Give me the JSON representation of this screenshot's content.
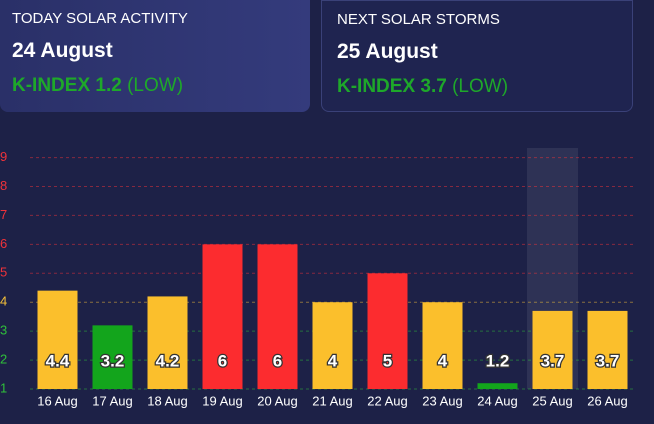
{
  "cards": [
    {
      "label": "TODAY SOLAR ACTIVITY",
      "date": "24 August",
      "k_index": "K-INDEX 1.2",
      "level": "(LOW)"
    },
    {
      "label": "NEXT SOLAR STORMS",
      "date": "25 August",
      "k_index": "K-INDEX 3.7",
      "level": "(LOW)"
    }
  ],
  "chart_data": {
    "type": "bar",
    "categories": [
      "16 Aug",
      "17 Aug",
      "18 Aug",
      "19 Aug",
      "20 Aug",
      "21 Aug",
      "22 Aug",
      "23 Aug",
      "24 Aug",
      "25 Aug",
      "26 Aug"
    ],
    "values": [
      4.4,
      3.2,
      4.2,
      6,
      6,
      4,
      5,
      4,
      1.2,
      3.7,
      3.7
    ],
    "colors": [
      "#fbbf2c",
      "#13a51c",
      "#fbbf2c",
      "#fc2c2f",
      "#fc2c2f",
      "#fbbf2c",
      "#fc2c2f",
      "#fbbf2c",
      "#13a51c",
      "#fbbf2c",
      "#fbbf2c"
    ],
    "ylim": [
      1,
      9.4
    ],
    "yticks": [
      1,
      2,
      3,
      4,
      5,
      6,
      7,
      8,
      9
    ],
    "ytick_colors": [
      "#2fbf3a",
      "#2fbf3a",
      "#2fbf3a",
      "#f5c13a",
      "#f0323a",
      "#f0323a",
      "#f0323a",
      "#f0323a",
      "#f0323a"
    ],
    "grid": true,
    "highlight_index": 9
  }
}
